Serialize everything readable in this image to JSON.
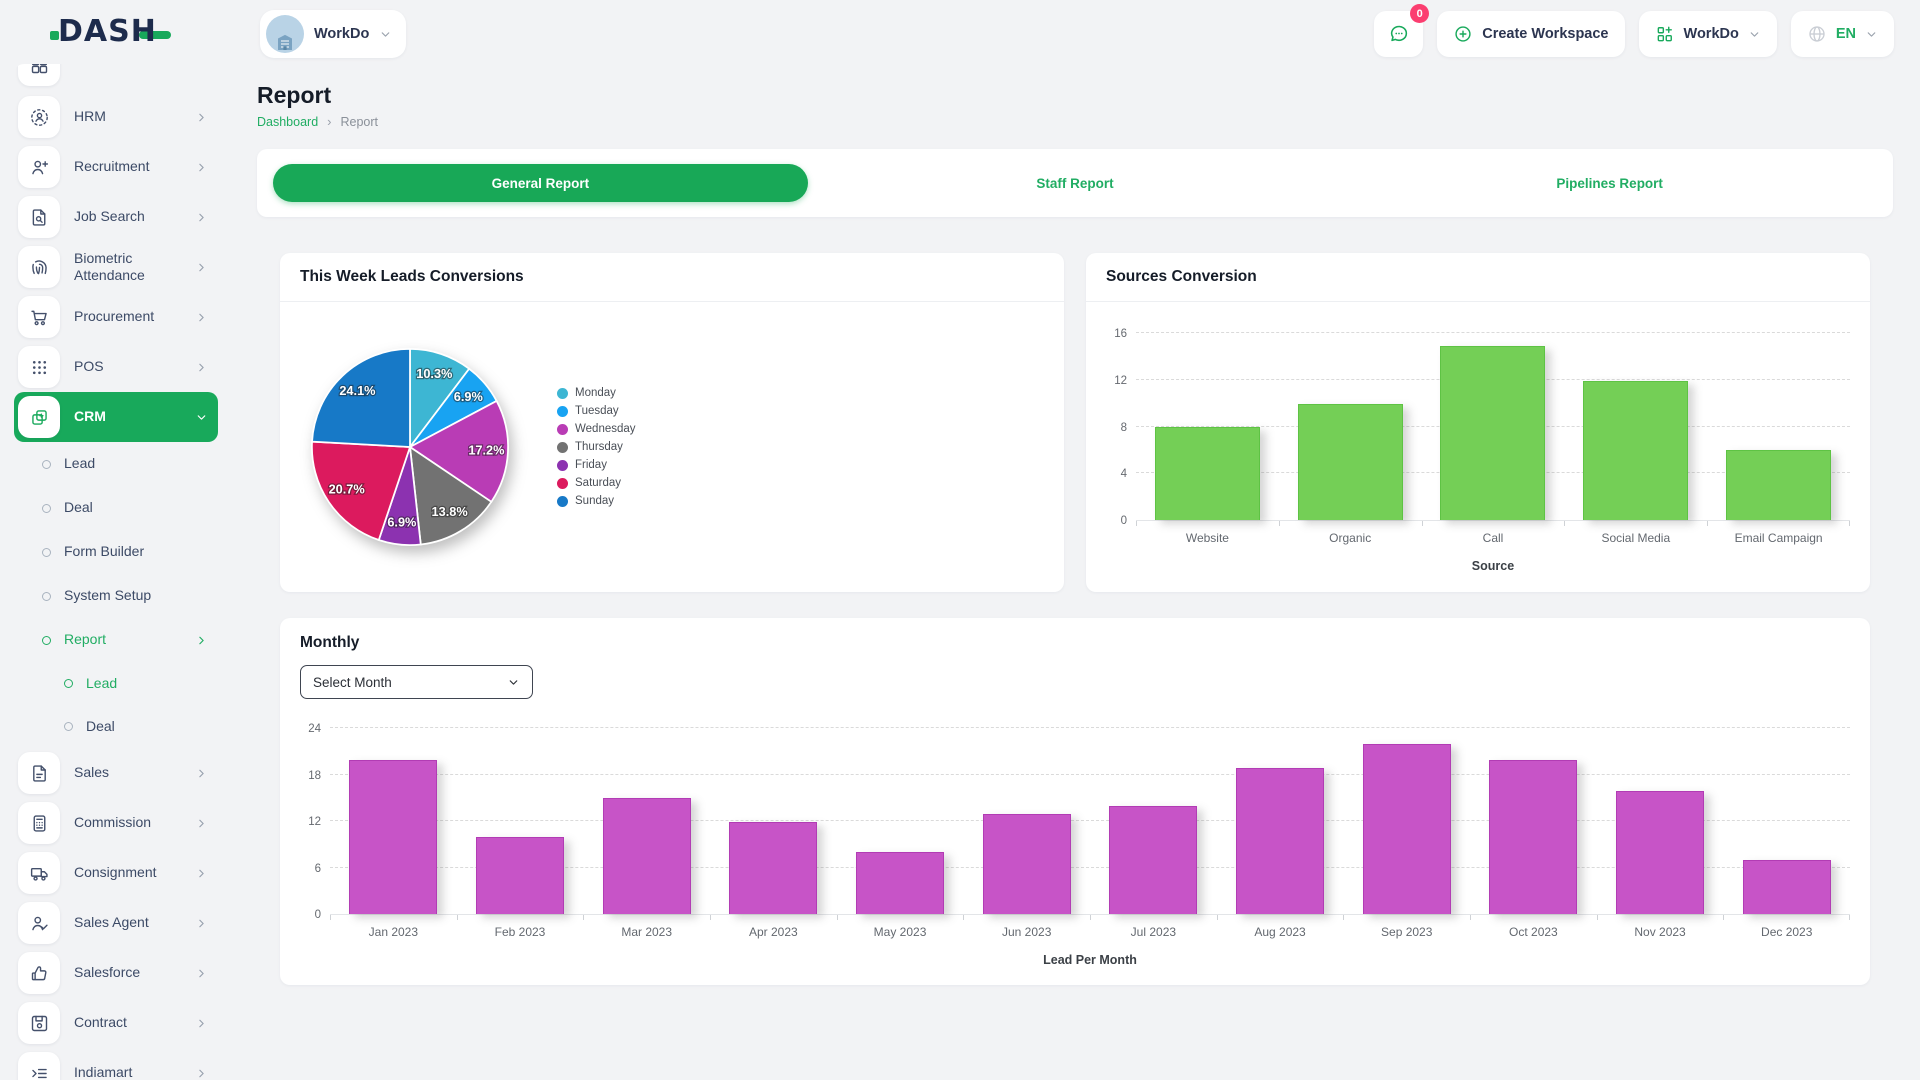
{
  "brand": {
    "logo_text": "DASH"
  },
  "header": {
    "workspace_switcher_label": "WorkDo",
    "messages_badge": "0",
    "create_workspace_label": "Create Workspace",
    "workspace_menu_label": "WorkDo",
    "language_label": "EN"
  },
  "sidebar": {
    "items": [
      {
        "label": "",
        "icon": "dashboard",
        "level": 0,
        "cropped": true
      },
      {
        "label": "HRM",
        "icon": "hrm",
        "level": 0,
        "chevron": "right"
      },
      {
        "label": "Recruitment",
        "icon": "recruitment",
        "level": 0,
        "chevron": "right"
      },
      {
        "label": "Job Search",
        "icon": "job-search",
        "level": 0,
        "chevron": "right"
      },
      {
        "label": "Biometric Attendance",
        "icon": "biometric-attendance",
        "level": 0,
        "chevron": "right"
      },
      {
        "label": "Procurement",
        "icon": "procurement",
        "level": 0,
        "chevron": "right"
      },
      {
        "label": "POS",
        "icon": "pos",
        "level": 0,
        "chevron": "right"
      },
      {
        "label": "CRM",
        "icon": "crm",
        "level": 0,
        "active": true,
        "chevron": "down"
      },
      {
        "label": "Lead",
        "level": 1
      },
      {
        "label": "Deal",
        "level": 1
      },
      {
        "label": "Form Builder",
        "level": 1
      },
      {
        "label": "System Setup",
        "level": 1
      },
      {
        "label": "Report",
        "level": 1,
        "active": true,
        "chevron": "right"
      },
      {
        "label": "Lead",
        "level": 2,
        "active": true
      },
      {
        "label": "Deal",
        "level": 2
      },
      {
        "label": "Sales",
        "icon": "sales",
        "level": 0,
        "chevron": "right"
      },
      {
        "label": "Commission",
        "icon": "commission",
        "level": 0,
        "chevron": "right"
      },
      {
        "label": "Consignment",
        "icon": "consignment",
        "level": 0,
        "chevron": "right"
      },
      {
        "label": "Sales Agent",
        "icon": "sales-agent",
        "level": 0,
        "chevron": "right"
      },
      {
        "label": "Salesforce",
        "icon": "salesforce",
        "level": 0,
        "chevron": "right"
      },
      {
        "label": "Contract",
        "icon": "contract",
        "level": 0,
        "chevron": "right"
      },
      {
        "label": "Indiamart",
        "icon": "indiamart",
        "level": 0,
        "chevron": "right"
      }
    ]
  },
  "page": {
    "title": "Report",
    "breadcrumb_parent": "Dashboard",
    "breadcrumb_current": "Report"
  },
  "tabs": [
    {
      "label": "General Report",
      "active": true
    },
    {
      "label": "Staff Report",
      "active": false
    },
    {
      "label": "Pipelines Report",
      "active": false
    }
  ],
  "cards": {
    "pie_card_title": "This Week Leads Conversions",
    "sources_card_title": "Sources Conversion",
    "monthly_card_title": "Monthly",
    "select_month_placeholder": "Select Month"
  },
  "colors": {
    "accent_green": "#18a95b",
    "link_green": "#21ad63",
    "badge_pink": "#fb3e70"
  },
  "chart_data": [
    {
      "id": "week_leads",
      "type": "pie",
      "title": "This Week Leads Conversions",
      "labels": [
        "Monday",
        "Tuesday",
        "Wednesday",
        "Thursday",
        "Friday",
        "Saturday",
        "Sunday"
      ],
      "values_pct": [
        10.3,
        6.9,
        17.2,
        13.8,
        6.9,
        20.7,
        24.1
      ],
      "colors": [
        "#3db6d3",
        "#18a3f2",
        "#b93cb5",
        "#727272",
        "#8c32b0",
        "#dc1a5e",
        "#1779c7"
      ],
      "legend_position": "right"
    },
    {
      "id": "sources",
      "type": "bar",
      "title": "Sources Conversion",
      "categories": [
        "Website",
        "Organic",
        "Call",
        "Social Media",
        "Email Campaign"
      ],
      "values": [
        8,
        10,
        15,
        12,
        6
      ],
      "xlabel": "Source",
      "ylim": [
        0,
        16
      ],
      "yticks": [
        0,
        4,
        8,
        12,
        16
      ],
      "grid": true,
      "bar_color": "#74cf56",
      "bar_border": "#5ec344"
    },
    {
      "id": "monthly",
      "type": "bar",
      "title": "Monthly",
      "categories": [
        "Jan 2023",
        "Feb 2023",
        "Mar 2023",
        "Apr 2023",
        "May 2023",
        "Jun 2023",
        "Jul 2023",
        "Aug 2023",
        "Sep 2023",
        "Oct 2023",
        "Nov 2023",
        "Dec 2023"
      ],
      "values": [
        20,
        10,
        15,
        12,
        8,
        13,
        14,
        19,
        22,
        20,
        16,
        7
      ],
      "xlabel": "Lead Per Month",
      "ylim": [
        0,
        24
      ],
      "yticks": [
        0,
        6,
        12,
        18,
        24
      ],
      "grid": true,
      "bar_color": "#c754c7",
      "bar_border": "#b23cb4"
    }
  ]
}
